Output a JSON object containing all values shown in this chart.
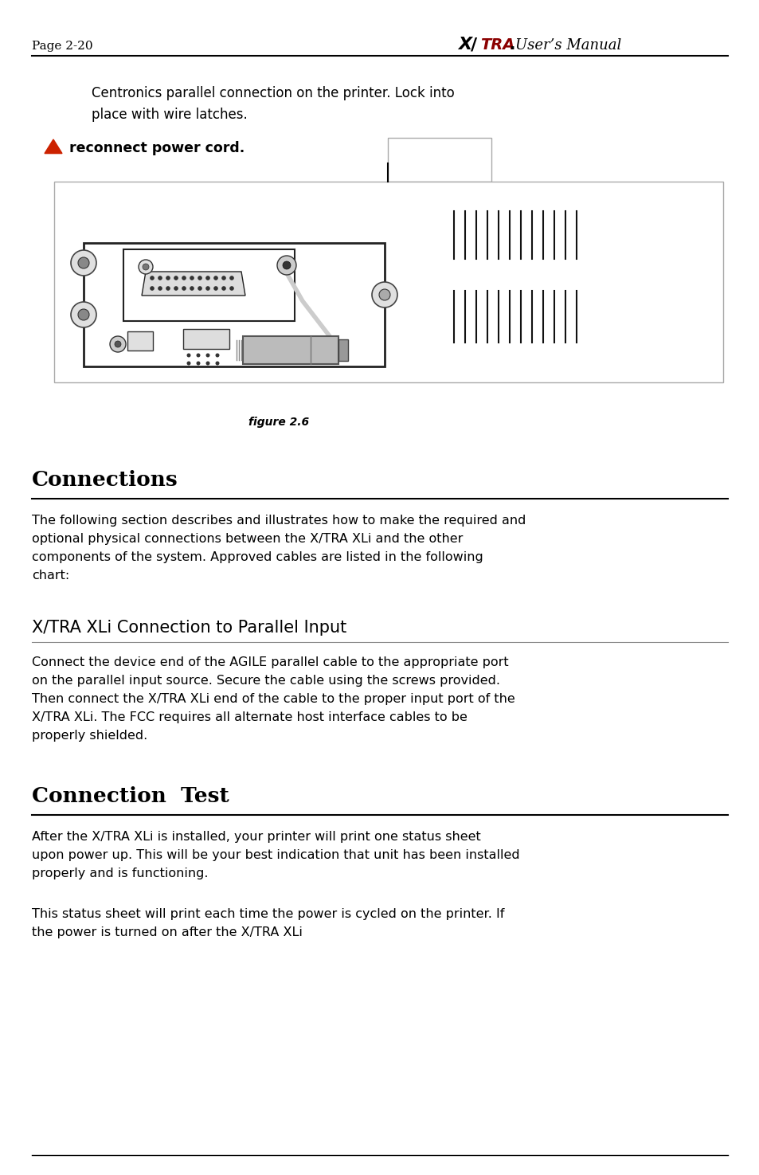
{
  "page_label": "Page 2-20",
  "header_title": "User’s Manual",
  "bg_color": "#ffffff",
  "text_color": "#000000",
  "para1_line1": "Centronics parallel connection on the printer. Lock into",
  "para1_line2": "place with wire latches.",
  "warning_text": "reconnect power cord.",
  "fig_caption": "figure 2.6",
  "section1_title": "Connections",
  "section1_body_lines": [
    "The following section describes and illustrates how to make the required and",
    "optional physical connections between the X/TRA XLi and the other",
    "components of the system. Approved cables are listed in the following",
    "chart:"
  ],
  "section2_title": "X/TRA XLi Connection to Parallel Input",
  "section2_body_lines": [
    "Connect the device end of the AGILE parallel cable to the appropriate port",
    "on the parallel input source. Secure the cable using the screws provided.",
    "Then connect the X/TRA XLi end of the cable to the proper input port of the",
    "X/TRA XLi. The FCC requires all alternate host interface cables to be",
    "properly shielded."
  ],
  "section3_title": "Connection  Test",
  "section3_body1_lines": [
    "After the X/TRA XLi is installed, your printer will print one status sheet",
    "upon power up. This will be your best indication that unit has been installed",
    "properly and is functioning."
  ],
  "section3_body2_lines": [
    "This status sheet will print each time the power is cycled on the printer. If",
    "the power is turned on after the X/TRA XLi"
  ],
  "red_color": "#cc2200",
  "divider_color": "#000000",
  "gray_line": "#888888"
}
